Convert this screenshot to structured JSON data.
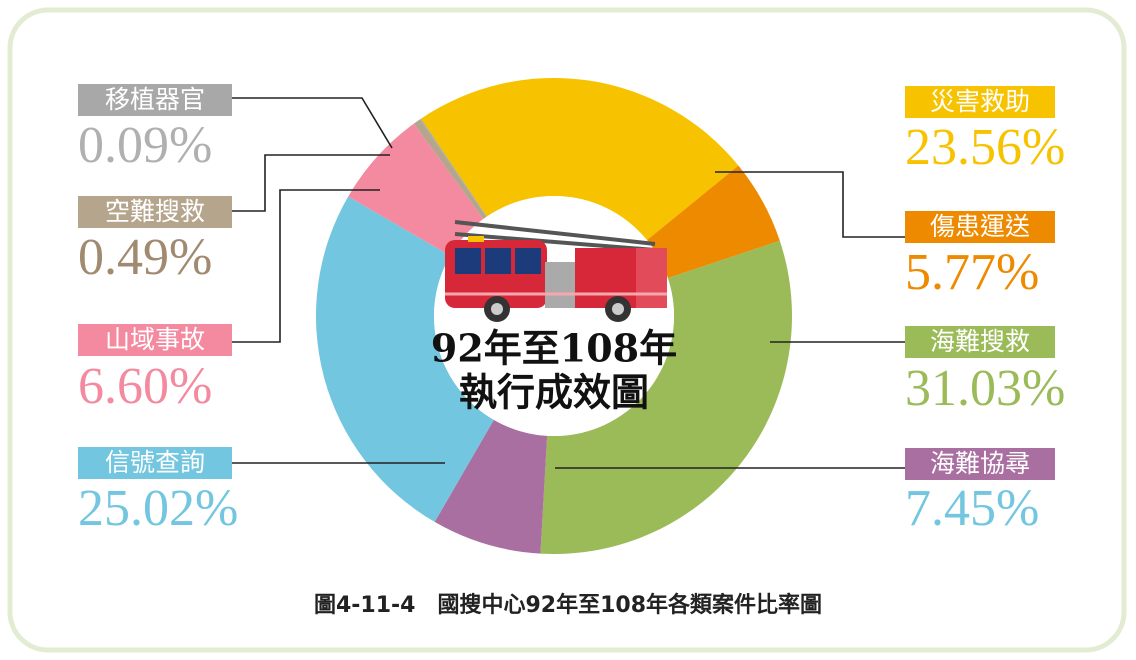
{
  "chart_data": {
    "type": "donut",
    "title_lines": [
      "92年至108年",
      "執行成效圖"
    ],
    "caption": "圖4-11-4　國搜中心92年至108年各類案件比率圖",
    "categories": [
      "災害救助",
      "傷患運送",
      "海難搜救",
      "海難協尋",
      "信號查詢",
      "山域事故",
      "空難搜救",
      "移植器官"
    ],
    "values": [
      23.56,
      5.77,
      31.03,
      7.45,
      25.02,
      6.6,
      0.49,
      0.09
    ],
    "value_labels": [
      "23.56%",
      "5.77%",
      "31.03%",
      "7.45%",
      "25.02%",
      "6.60%",
      "0.49%",
      "0.09%"
    ],
    "colors": [
      "#f7c200",
      "#ee8a00",
      "#9bbb59",
      "#a96fa0",
      "#72c6df",
      "#f48aa0",
      "#b5a58c",
      "#a8a8a8"
    ],
    "value_label_colors": [
      "#f7c200",
      "#ee8a00",
      "#9bbb59",
      "#72c6df",
      "#72c6df",
      "#f48aa0",
      "#a08a70",
      "#b0b0b0"
    ]
  }
}
